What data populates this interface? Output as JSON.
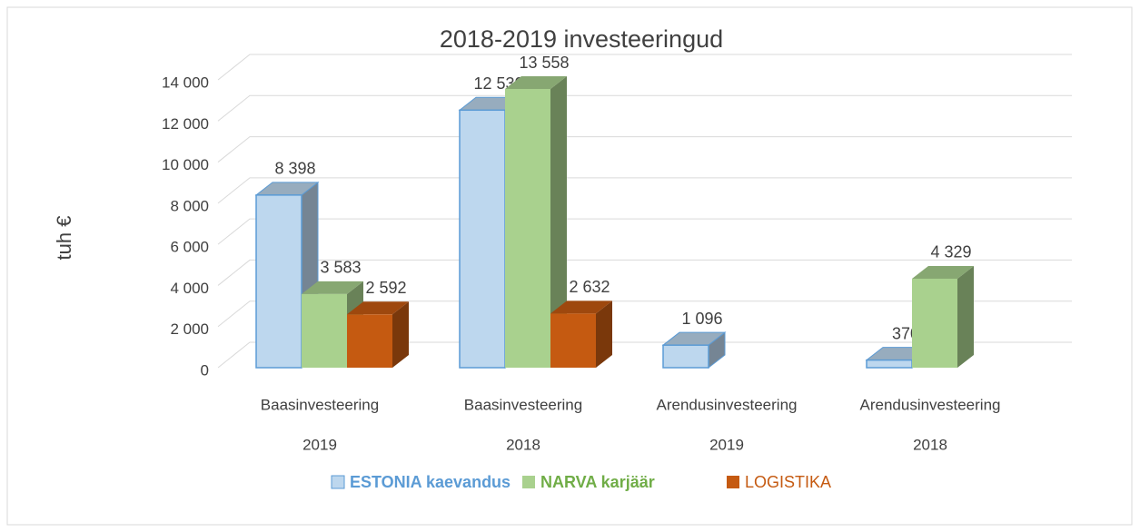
{
  "chart_data": {
    "type": "bar3d",
    "title": "2018-2019 investeeringud",
    "y_label": "tuh €",
    "categories": [
      "Baasinvesteering",
      "Baasinvesteering",
      "Arendusinvesteering",
      "Arendusinvesteering"
    ],
    "category_years": [
      "2019",
      "2018",
      "2019",
      "2018"
    ],
    "series": [
      {
        "name": "ESTONIA kaevandus",
        "color": "#bdd7ee",
        "values": [
          8398,
          12530,
          1096,
          370
        ],
        "value_labels": [
          "8 398",
          "12 530",
          "1 096",
          "370"
        ]
      },
      {
        "name": "NARVA karjäär",
        "color": "#a9d18e",
        "values": [
          3583,
          13558,
          null,
          4329
        ],
        "value_labels": [
          "3 583",
          "13 558",
          null,
          "4 329"
        ]
      },
      {
        "name": "LOGISTIKA",
        "color": "#c55a11",
        "values": [
          2592,
          2632,
          null,
          null
        ],
        "value_labels": [
          "2 592",
          "2 632",
          null,
          null
        ]
      }
    ],
    "ylim": [
      0,
      14000
    ],
    "yticks": [
      0,
      {
        "value": 2000,
        "label": "2 000"
      },
      {
        "value": 4000,
        "label": "4 000"
      },
      {
        "value": 6000,
        "label": "6 000"
      },
      {
        "value": 8000,
        "label": "8 000"
      },
      {
        "value": 10000,
        "label": "10 000"
      },
      {
        "value": 12000,
        "label": "12 000"
      },
      {
        "value": 14000,
        "label": "14 000"
      }
    ],
    "grid": true,
    "legend": "bottom"
  }
}
